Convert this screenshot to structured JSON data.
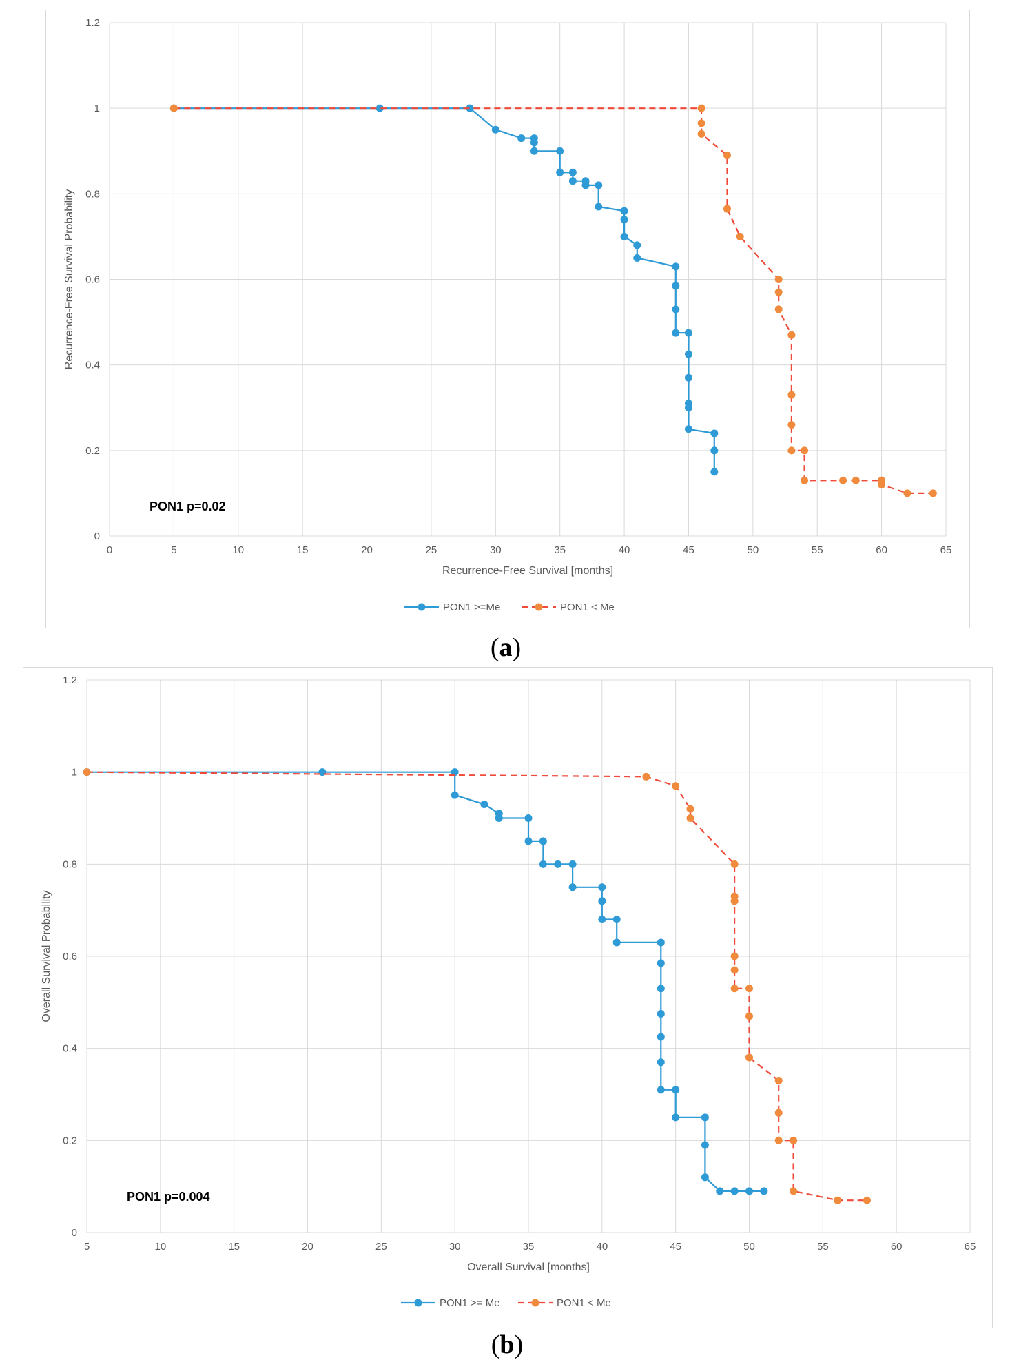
{
  "colors": {
    "series_high": "#2e9ad6",
    "series_low": "#f08a3c",
    "series_low_line": "#ef4a3a",
    "grid": "#d9d9d9"
  },
  "captions": {
    "a": {
      "open": "(",
      "letter": "a",
      "close": ")"
    },
    "b": {
      "open": "(",
      "letter": "b",
      "close": ")"
    }
  },
  "chart_data": [
    {
      "type": "line",
      "id": "a",
      "xlabel": "Recurrence-Free Survival [months]",
      "ylabel": "Recurrence-Free Survival Probability",
      "xlim": [
        0,
        65
      ],
      "ylim": [
        0,
        1.2
      ],
      "xticks": [
        0,
        5,
        10,
        15,
        20,
        25,
        30,
        35,
        40,
        45,
        50,
        55,
        60,
        65
      ],
      "yticks": [
        0,
        0.2,
        0.4,
        0.6,
        0.8,
        1,
        1.2
      ],
      "ytick_labels": [
        "0",
        "0.2",
        "0.4",
        "0.6",
        "0.8",
        "1",
        "1.2"
      ],
      "grid": true,
      "legend_position": "bottom",
      "annotation": "PON1 p=0.02",
      "series": [
        {
          "name": "PON1 >=Me",
          "style": "solid",
          "x": [
            5,
            21,
            28,
            30,
            32,
            33,
            33,
            33,
            35,
            35,
            36,
            36,
            37,
            37,
            38,
            38,
            40,
            40,
            40,
            41,
            41,
            44,
            44,
            44,
            44,
            45,
            45,
            45,
            45,
            45,
            45,
            47,
            47,
            47
          ],
          "y": [
            1,
            1,
            1,
            0.95,
            0.93,
            0.93,
            0.92,
            0.9,
            0.9,
            0.85,
            0.85,
            0.83,
            0.83,
            0.82,
            0.82,
            0.77,
            0.76,
            0.74,
            0.7,
            0.68,
            0.65,
            0.63,
            0.585,
            0.53,
            0.475,
            0.475,
            0.425,
            0.37,
            0.31,
            0.3,
            0.25,
            0.24,
            0.2,
            0.15
          ]
        },
        {
          "name": "PON1 < Me",
          "style": "dashed",
          "x": [
            5,
            46,
            46,
            46,
            48,
            48,
            49,
            52,
            52,
            52,
            53,
            53,
            53,
            53,
            54,
            54,
            57,
            58,
            60,
            60,
            62,
            64
          ],
          "y": [
            1,
            1,
            0.965,
            0.94,
            0.89,
            0.765,
            0.7,
            0.6,
            0.57,
            0.53,
            0.47,
            0.33,
            0.26,
            0.2,
            0.2,
            0.13,
            0.13,
            0.13,
            0.13,
            0.12,
            0.1,
            0.1
          ]
        }
      ]
    },
    {
      "type": "line",
      "id": "b",
      "xlabel": "Overall Survival [months]",
      "ylabel": "Overall Survival Probability",
      "xlim": [
        5,
        65
      ],
      "ylim": [
        0,
        1.2
      ],
      "xticks": [
        5,
        10,
        15,
        20,
        25,
        30,
        35,
        40,
        45,
        50,
        55,
        60,
        65
      ],
      "yticks": [
        0,
        0.2,
        0.4,
        0.6,
        0.8,
        1,
        1.2
      ],
      "ytick_labels": [
        "0",
        "0.2",
        "0.4",
        "0.6",
        "0.8",
        "1",
        "1.2"
      ],
      "grid": true,
      "legend_position": "bottom",
      "annotation": "PON1 p=0.004",
      "series": [
        {
          "name": "PON1 >= Me",
          "style": "solid",
          "x": [
            5,
            21,
            30,
            30,
            32,
            33,
            33,
            35,
            35,
            36,
            36,
            37,
            38,
            38,
            40,
            40,
            40,
            41,
            41,
            44,
            44,
            44,
            44,
            44,
            44,
            44,
            45,
            45,
            47,
            47,
            47,
            48,
            49,
            50,
            51
          ],
          "y": [
            1,
            1,
            1,
            0.95,
            0.93,
            0.91,
            0.9,
            0.9,
            0.85,
            0.85,
            0.8,
            0.8,
            0.8,
            0.75,
            0.75,
            0.72,
            0.68,
            0.68,
            0.63,
            0.63,
            0.585,
            0.53,
            0.475,
            0.425,
            0.37,
            0.31,
            0.31,
            0.25,
            0.25,
            0.19,
            0.12,
            0.09,
            0.09,
            0.09,
            0.09
          ]
        },
        {
          "name": "PON1 < Me",
          "style": "dashed",
          "x": [
            5,
            43,
            45,
            46,
            46,
            49,
            49,
            49,
            49,
            49,
            49,
            50,
            50,
            50,
            52,
            52,
            52,
            53,
            53,
            56,
            58
          ],
          "y": [
            1,
            0.99,
            0.97,
            0.92,
            0.9,
            0.8,
            0.73,
            0.72,
            0.6,
            0.57,
            0.53,
            0.53,
            0.47,
            0.38,
            0.33,
            0.26,
            0.2,
            0.2,
            0.09,
            0.07,
            0.07
          ]
        }
      ]
    }
  ]
}
